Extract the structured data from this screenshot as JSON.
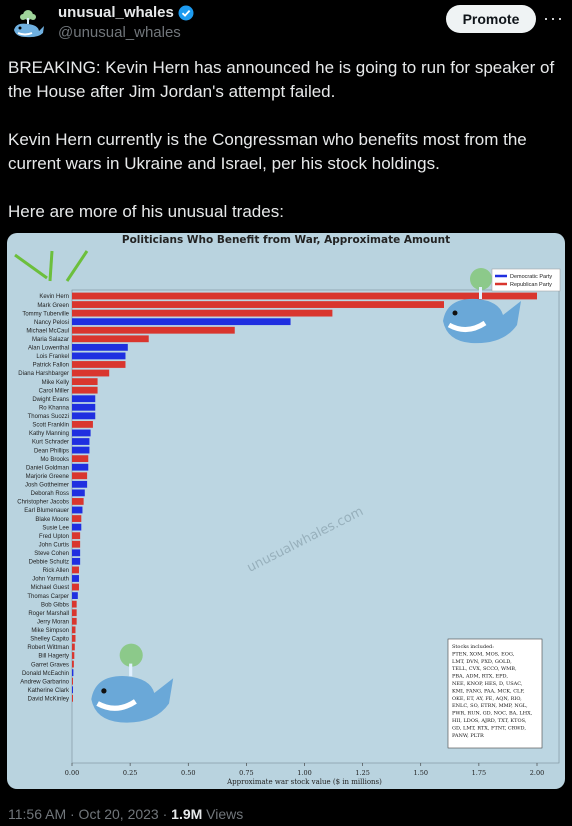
{
  "account": {
    "name": "unusual_whales",
    "handle": "@unusual_whales",
    "promote_label": "Promote",
    "more_icon": "more-icon"
  },
  "tweet": {
    "paragraphs": [
      "BREAKING: Kevin Hern has announced he is going to run for speaker of the House after Jim Jordan's attempt failed.",
      "Kevin Hern currently is the Congressman who benefits most from the current wars in Ukraine and Israel, per his stock holdings.",
      "Here are more of his unusual trades:"
    ]
  },
  "footer": {
    "time": "11:56 AM · Oct 20, 2023 · ",
    "views": "1.9M",
    "views_label": " Views"
  },
  "colors": {
    "democratic": "#1f2fe0",
    "republican": "#d9362e",
    "chart_bg": "#b9d3df"
  },
  "chart_data": {
    "type": "bar",
    "orientation": "horizontal",
    "title": "Politicians Who Benefit from War, Approximate Amount",
    "xlabel": "Approximate war stock value ($ in millions)",
    "xlim": [
      0,
      2.0
    ],
    "xticks": [
      "0.00",
      "0.25",
      "0.50",
      "0.75",
      "1.00",
      "1.25",
      "1.50",
      "1.75",
      "2.00"
    ],
    "legend": {
      "placement": "top-right",
      "entries": [
        {
          "name": "Democratic Party",
          "color": "#1f2fe0"
        },
        {
          "name": "Republican Party",
          "color": "#d9362e"
        }
      ]
    },
    "watermark": "unusualwhales.com",
    "stocks_box": "Stocks included:\nPTEN, XOM, MOS, EOG,\nLMT, DVN, PXD, GOLD,\nTELL, CVX, SCCO, WMB,\nPBA, ADM, RTX, EPD,\nNEE, KNOP, HES, D, USAC,\nKMI, FANG, PAA, MCK, CLF,\nOKE, ET, AY, FE, AQN, RIO,\nENLC, SO, ETRN, MMP, NGL,\nPWR, RUN, GD, NOC, BA, LHX,\nHII, LDOS, AJRD, TXT, KTOS,\nGD, LMT, RTX, FTNT, CRWD,\nPANW, PLTR",
    "bars": [
      {
        "name": "Kevin Hern",
        "value": 2.0,
        "party": "R"
      },
      {
        "name": "Mark Green",
        "value": 1.6,
        "party": "R"
      },
      {
        "name": "Tommy Tuberville",
        "value": 1.12,
        "party": "R"
      },
      {
        "name": "Nancy Pelosi",
        "value": 0.94,
        "party": "D"
      },
      {
        "name": "Michael McCaul",
        "value": 0.7,
        "party": "R"
      },
      {
        "name": "Maria Salazar",
        "value": 0.33,
        "party": "R"
      },
      {
        "name": "Alan Lowenthal",
        "value": 0.24,
        "party": "D"
      },
      {
        "name": "Lois Frankel",
        "value": 0.23,
        "party": "D"
      },
      {
        "name": "Patrick Fallon",
        "value": 0.23,
        "party": "R"
      },
      {
        "name": "Diana Harshbarger",
        "value": 0.16,
        "party": "R"
      },
      {
        "name": "Mike Kelly",
        "value": 0.11,
        "party": "R"
      },
      {
        "name": "Carol Miller",
        "value": 0.11,
        "party": "R"
      },
      {
        "name": "Dwight Evans",
        "value": 0.1,
        "party": "D"
      },
      {
        "name": "Ro Khanna",
        "value": 0.1,
        "party": "D"
      },
      {
        "name": "Thomas Suozzi",
        "value": 0.1,
        "party": "D"
      },
      {
        "name": "Scott Franklin",
        "value": 0.09,
        "party": "R"
      },
      {
        "name": "Kathy Manning",
        "value": 0.08,
        "party": "D"
      },
      {
        "name": "Kurt Schrader",
        "value": 0.075,
        "party": "D"
      },
      {
        "name": "Dean Phillips",
        "value": 0.075,
        "party": "D"
      },
      {
        "name": "Mo Brooks",
        "value": 0.07,
        "party": "R"
      },
      {
        "name": "Daniel Goldman",
        "value": 0.07,
        "party": "D"
      },
      {
        "name": "Marjorie Greene",
        "value": 0.065,
        "party": "R"
      },
      {
        "name": "Josh Gottheimer",
        "value": 0.065,
        "party": "D"
      },
      {
        "name": "Deborah Ross",
        "value": 0.055,
        "party": "D"
      },
      {
        "name": "Christopher Jacobs",
        "value": 0.05,
        "party": "R"
      },
      {
        "name": "Earl Blumenauer",
        "value": 0.045,
        "party": "D"
      },
      {
        "name": "Blake Moore",
        "value": 0.04,
        "party": "R"
      },
      {
        "name": "Susie Lee",
        "value": 0.04,
        "party": "D"
      },
      {
        "name": "Fred Upton",
        "value": 0.035,
        "party": "R"
      },
      {
        "name": "John Curtis",
        "value": 0.035,
        "party": "R"
      },
      {
        "name": "Steve Cohen",
        "value": 0.035,
        "party": "D"
      },
      {
        "name": "Debbie Schultz",
        "value": 0.035,
        "party": "D"
      },
      {
        "name": "Rick Allen",
        "value": 0.03,
        "party": "R"
      },
      {
        "name": "John Yarmuth",
        "value": 0.03,
        "party": "D"
      },
      {
        "name": "Michael Guest",
        "value": 0.03,
        "party": "R"
      },
      {
        "name": "Thomas Carper",
        "value": 0.025,
        "party": "D"
      },
      {
        "name": "Bob Gibbs",
        "value": 0.02,
        "party": "R"
      },
      {
        "name": "Roger Marshall",
        "value": 0.02,
        "party": "R"
      },
      {
        "name": "Jerry Moran",
        "value": 0.02,
        "party": "R"
      },
      {
        "name": "Mike Simpson",
        "value": 0.015,
        "party": "R"
      },
      {
        "name": "Shelley Capito",
        "value": 0.015,
        "party": "R"
      },
      {
        "name": "Robert Wittman",
        "value": 0.012,
        "party": "R"
      },
      {
        "name": "Bill Hagerty",
        "value": 0.01,
        "party": "R"
      },
      {
        "name": "Garret Graves",
        "value": 0.008,
        "party": "R"
      },
      {
        "name": "Donald McEachin",
        "value": 0.006,
        "party": "D"
      },
      {
        "name": "Andrew Garbarino",
        "value": 0.004,
        "party": "R"
      },
      {
        "name": "Katherine Clark",
        "value": 0.003,
        "party": "D"
      },
      {
        "name": "David McKinley",
        "value": 0.002,
        "party": "R"
      }
    ]
  }
}
